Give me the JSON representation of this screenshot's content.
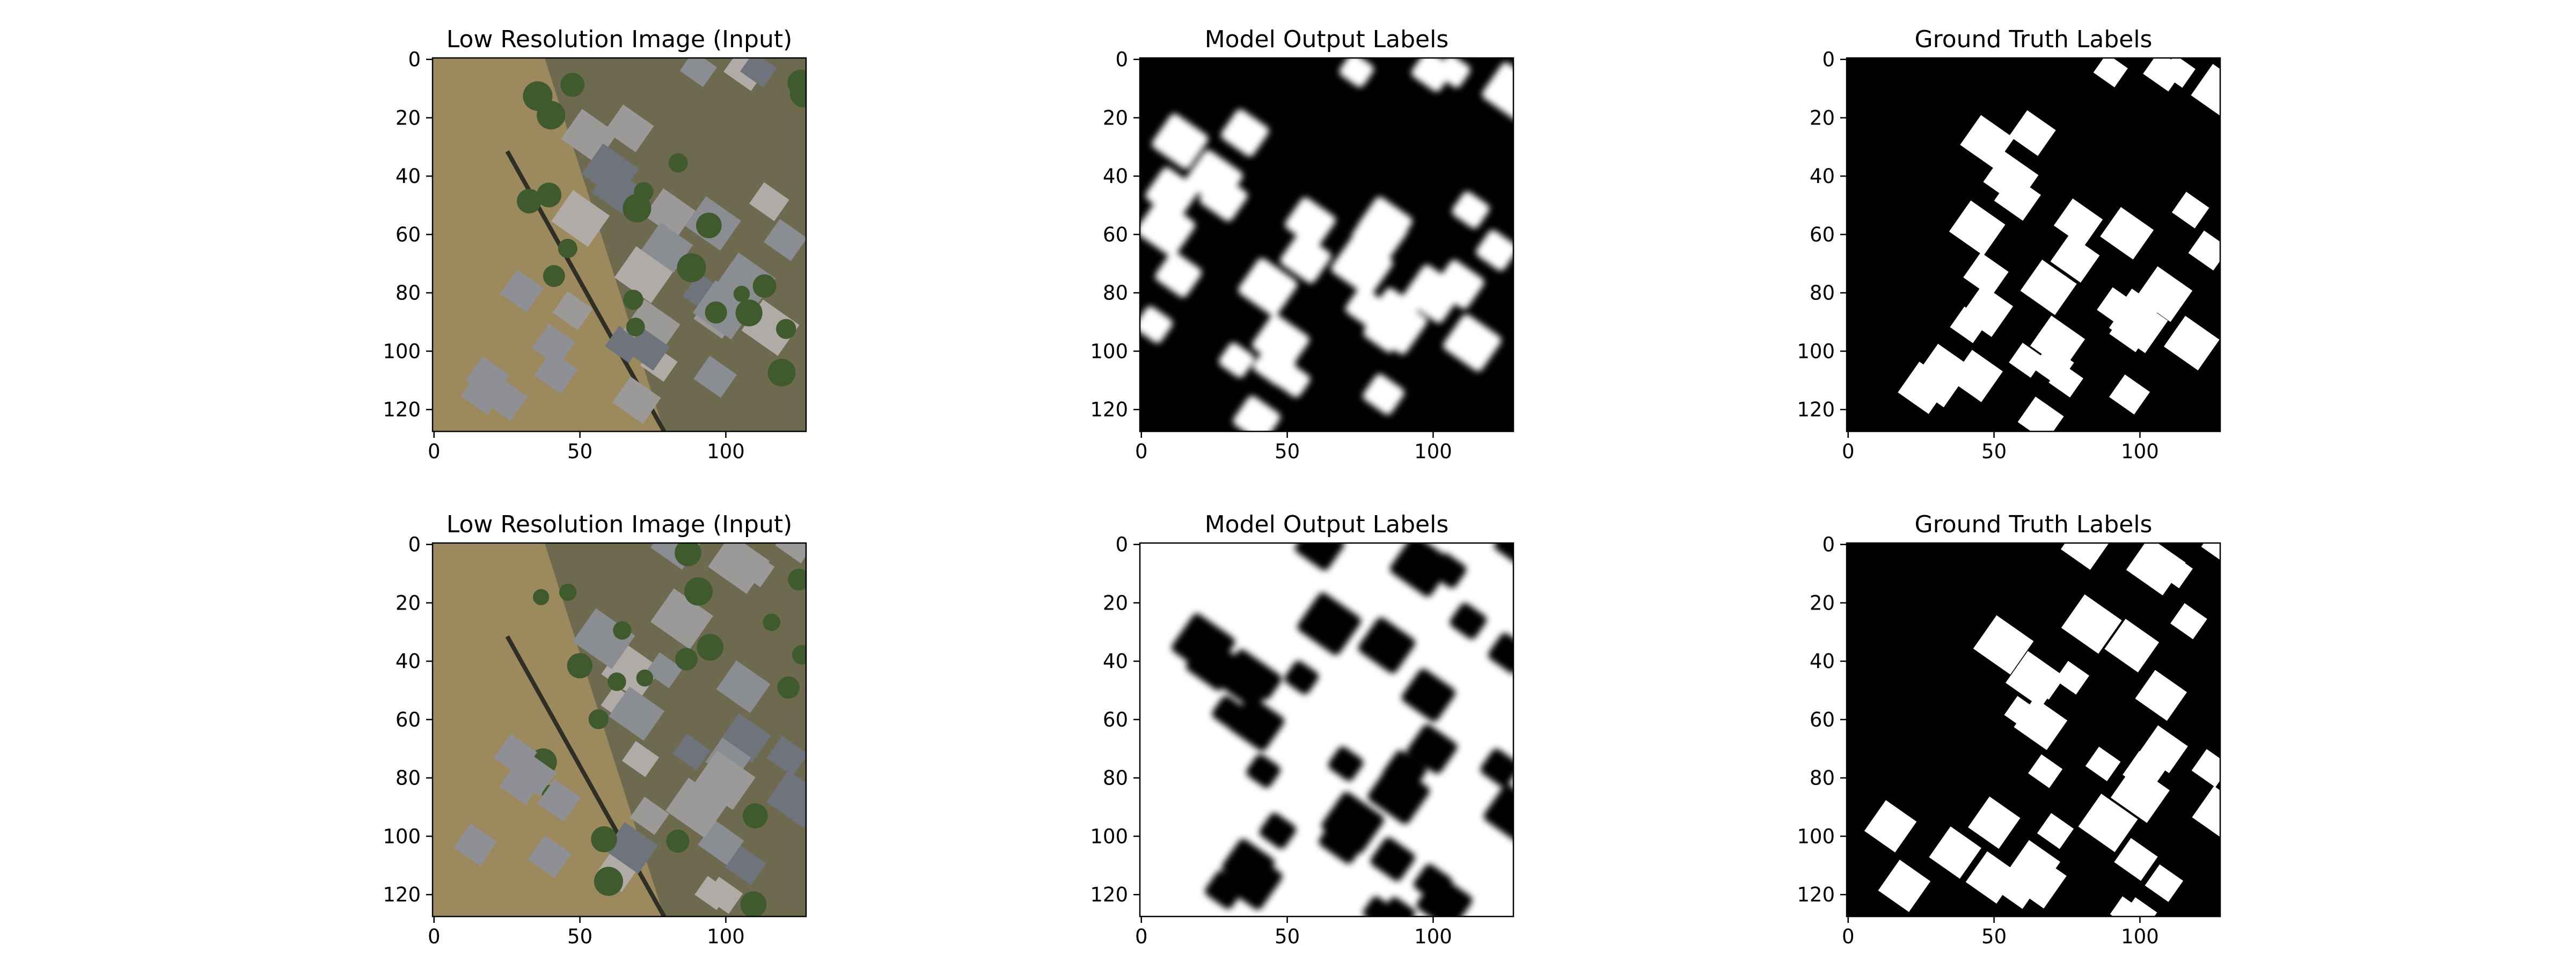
{
  "chart_data": [
    {
      "type": "image",
      "title": "Low Resolution Image (Input)",
      "xlim": [
        -0.5,
        127.5
      ],
      "ylim": [
        127.5,
        -0.5
      ],
      "xticks": [
        0,
        50,
        100
      ],
      "yticks": [
        0,
        20,
        40,
        60,
        80,
        100,
        120
      ]
    },
    {
      "type": "image",
      "title": "Model Output Labels",
      "xlim": [
        -0.5,
        127.5
      ],
      "ylim": [
        127.5,
        -0.5
      ],
      "xticks": [
        0,
        50,
        100
      ],
      "yticks": [
        0,
        20,
        40,
        60,
        80,
        100,
        120
      ]
    },
    {
      "type": "image",
      "title": "Ground Truth Labels",
      "xlim": [
        -0.5,
        127.5
      ],
      "ylim": [
        127.5,
        -0.5
      ],
      "xticks": [
        0,
        50,
        100
      ],
      "yticks": [
        0,
        20,
        40,
        60,
        80,
        100,
        120
      ]
    },
    {
      "type": "image",
      "title": "Low Resolution Image (Input)",
      "xlim": [
        -0.5,
        127.5
      ],
      "ylim": [
        127.5,
        -0.5
      ],
      "xticks": [
        0,
        50,
        100
      ],
      "yticks": [
        0,
        20,
        40,
        60,
        80,
        100,
        120
      ]
    },
    {
      "type": "image",
      "title": "Model Output Labels",
      "xlim": [
        -0.5,
        127.5
      ],
      "ylim": [
        127.5,
        -0.5
      ],
      "xticks": [
        0,
        50,
        100
      ],
      "yticks": [
        0,
        20,
        40,
        60,
        80,
        100,
        120
      ]
    },
    {
      "type": "image",
      "title": "Ground Truth Labels",
      "xlim": [
        -0.5,
        127.5
      ],
      "ylim": [
        127.5,
        -0.5
      ],
      "xticks": [
        0,
        50,
        100
      ],
      "yticks": [
        0,
        20,
        40,
        60,
        80,
        100,
        120
      ]
    }
  ]
}
